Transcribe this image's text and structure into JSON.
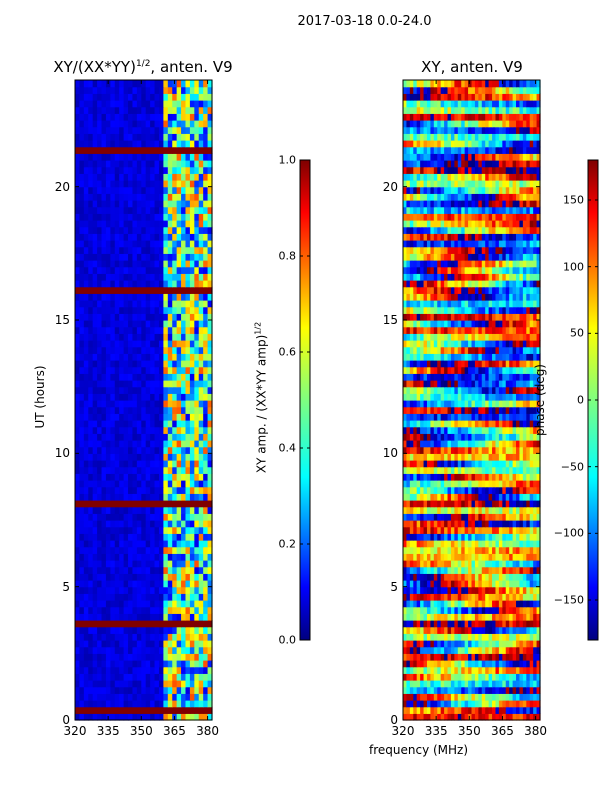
{
  "figure_title": "2017-03-18 0.0-24.0",
  "xlabel_shared": "frequency (MHz)",
  "colors": {
    "jet_low": "#00007f",
    "jet_high": "#7f0000",
    "flag_line": "#7f0000"
  },
  "chart_data": [
    {
      "type": "heatmap",
      "title": "XY/(XX*YY)",
      "title_sup": "1/2",
      "title_suffix": ", anten. V9",
      "xlabel": "",
      "ylabel": "UT (hours)",
      "xlim": [
        320,
        382
      ],
      "ylim": [
        0,
        24
      ],
      "xticks": [
        320,
        335,
        350,
        365,
        380
      ],
      "yticks": [
        0,
        5,
        10,
        15,
        20
      ],
      "colorbar": {
        "label": "XY amp. / (XX*YY amp)",
        "label_sup": "1/2",
        "range": [
          0.0,
          1.0
        ],
        "ticks": [
          "0.0",
          "0.2",
          "0.4",
          "0.6",
          "0.8",
          "1.0"
        ],
        "tick_values": [
          0.0,
          0.2,
          0.4,
          0.6,
          0.8,
          1.0
        ]
      },
      "description_bands": [
        {
          "freq_range": [
            320,
            360
          ],
          "typical_value": 0.05
        },
        {
          "freq_range": [
            360,
            382
          ],
          "typical_value": 0.45
        }
      ],
      "flagged_hours": [
        0.3,
        3.6,
        8.2,
        16.2,
        21.4
      ]
    },
    {
      "type": "heatmap",
      "title": "XY, anten. V9",
      "xlabel": "frequency (MHz)",
      "ylabel": "",
      "xlim": [
        320,
        382
      ],
      "ylim": [
        0,
        24
      ],
      "xticks": [
        320,
        335,
        350,
        365,
        380
      ],
      "yticks": [
        0,
        5,
        10,
        15,
        20
      ],
      "colorbar": {
        "label": "phase (deg)",
        "range": [
          -180,
          180
        ],
        "ticks": [
          "150",
          "100",
          "50",
          "0",
          "−50",
          "−100",
          "−150"
        ],
        "tick_values": [
          150,
          100,
          50,
          0,
          -50,
          -100,
          -150
        ]
      }
    }
  ]
}
